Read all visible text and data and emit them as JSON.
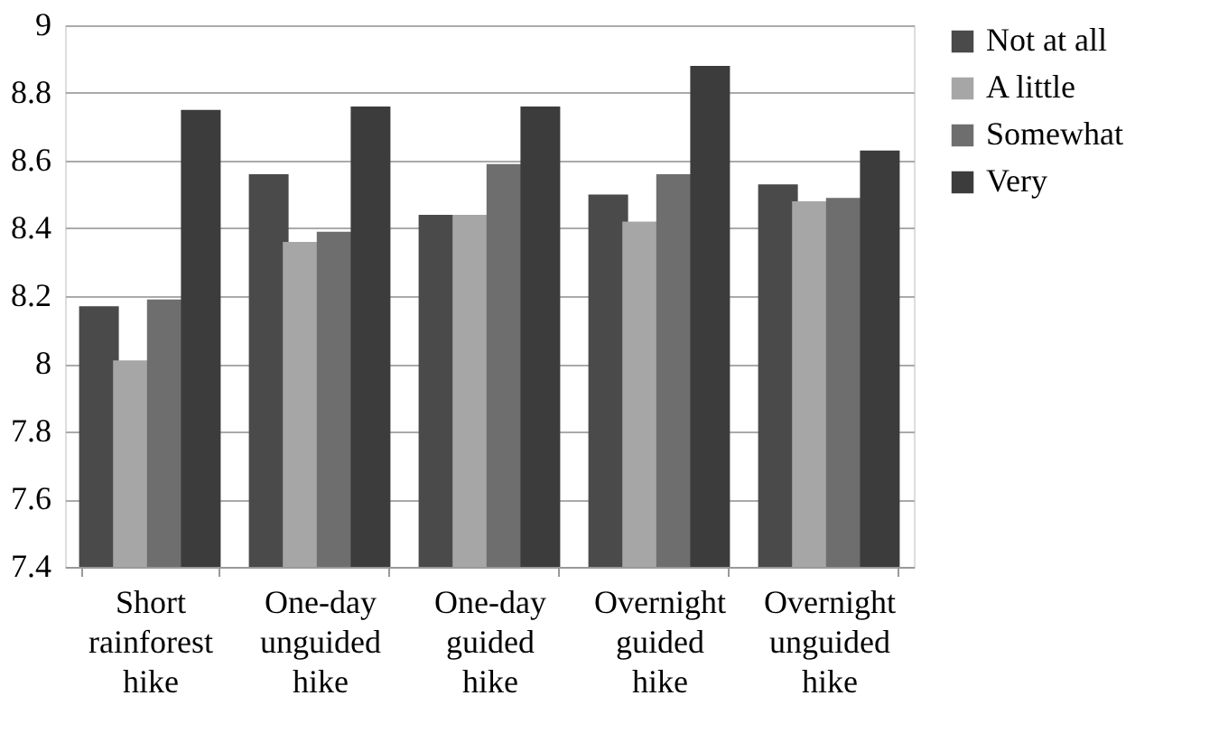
{
  "chart_data": {
    "type": "bar",
    "categories": [
      "Short rainforest hike",
      "One-day unguided hike",
      "One-day guided hike",
      "Overnight guided hike",
      "Overnight unguided hike"
    ],
    "series": [
      {
        "name": "Not at all",
        "color": "#4a4a4a",
        "values": [
          8.17,
          8.56,
          8.44,
          8.5,
          8.53
        ]
      },
      {
        "name": "A little",
        "color": "#a6a6a6",
        "values": [
          8.01,
          8.36,
          8.44,
          8.42,
          8.48
        ]
      },
      {
        "name": "Somewhat",
        "color": "#6e6e6e",
        "values": [
          8.19,
          8.39,
          8.59,
          8.56,
          8.49
        ]
      },
      {
        "name": "Very",
        "color": "#3c3c3c",
        "values": [
          8.75,
          8.76,
          8.76,
          8.88,
          8.63
        ]
      }
    ],
    "ylim": [
      7.4,
      9
    ],
    "yticks": [
      7.4,
      7.6,
      7.8,
      8,
      8.2,
      8.4,
      8.6,
      8.8,
      9
    ],
    "grid": "y",
    "legend": "right"
  }
}
